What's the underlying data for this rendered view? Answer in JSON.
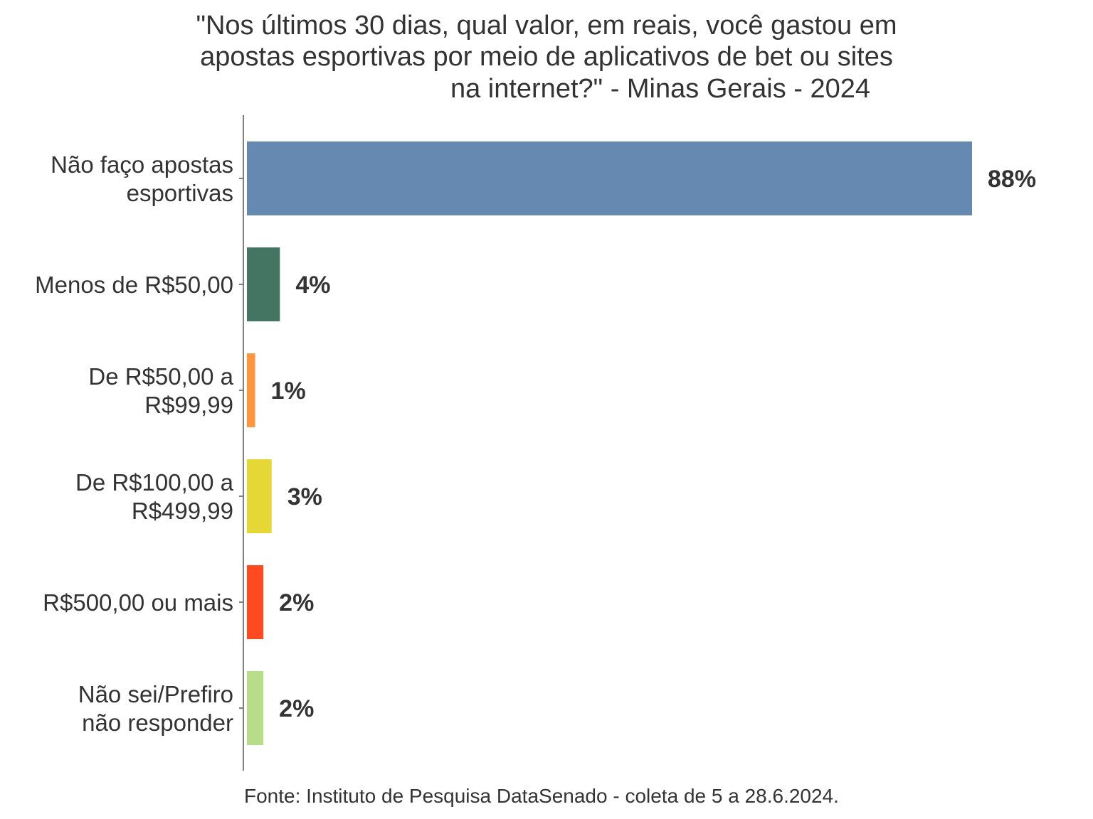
{
  "chart_data": {
    "type": "bar",
    "orientation": "horizontal",
    "title_lines": [
      "\"Nos últimos 30 dias, qual valor, em reais, você gastou em",
      "apostas esportivas por meio de aplicativos de bet ou sites",
      "na internet?\" - Minas Gerais - 2024"
    ],
    "categories": [
      [
        "Não faço apostas",
        "esportivas"
      ],
      [
        "Menos de R$50,00"
      ],
      [
        "De R$50,00 a",
        "R$99,99"
      ],
      [
        "De R$100,00 a",
        "R$499,99"
      ],
      [
        "R$500,00 ou mais"
      ],
      [
        "Não sei/Prefiro",
        "não responder"
      ]
    ],
    "values": [
      88,
      4,
      1,
      3,
      2,
      2
    ],
    "value_labels": [
      "88%",
      "4%",
      "1%",
      "3%",
      "2%",
      "2%"
    ],
    "colors": [
      "#6689B1",
      "#447462",
      "#FF963F",
      "#E5D836",
      "#FF4A21",
      "#B8DC8A"
    ],
    "xlim": [
      0,
      88
    ],
    "grid": false,
    "legend": "none"
  },
  "source": "Fonte: Instituto de Pesquisa DataSenado - coleta de 5 a 28.6.2024."
}
